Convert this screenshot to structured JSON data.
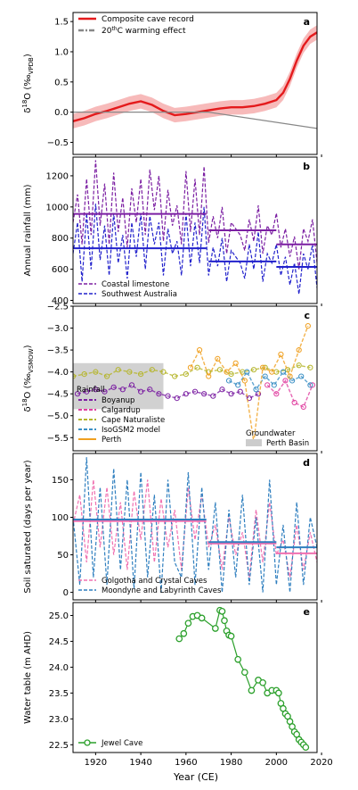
{
  "figure": {
    "xlabel": "Year (CE)",
    "xticks": [
      1920,
      1940,
      1960,
      1980,
      2000,
      2020
    ]
  },
  "chart_data": [
    {
      "panel": "a",
      "type": "line",
      "ylabel": "δ18O (‰VPDB)",
      "ylabel_parts": {
        "delta": "δ",
        "sup": "18",
        "main": "O (‰",
        "sub": "VPDB",
        "end": ")"
      },
      "xlim": [
        1910,
        2018
      ],
      "ylim": [
        -0.7,
        1.65
      ],
      "yticks": [
        -0.5,
        0.0,
        0.5,
        1.0,
        1.5
      ],
      "ytick_labels": [
        "−0.5",
        "0.0",
        "0.5",
        "1.0",
        "1.5"
      ],
      "legend_position": "top-left",
      "legend": [
        {
          "label": "Composite cave record",
          "color": "#e41a1c",
          "style": "solid"
        },
        {
          "label": "20thC warming effect",
          "label_main": "20",
          "label_sup": "th",
          "label_rest": "C warming effect",
          "color": "#888888",
          "style": "dashdot"
        }
      ],
      "series": [
        {
          "name": "Composite cave record",
          "color": "#e41a1c",
          "x": [
            1910,
            1915,
            1920,
            1925,
            1930,
            1935,
            1940,
            1945,
            1950,
            1955,
            1960,
            1965,
            1970,
            1975,
            1980,
            1985,
            1990,
            1995,
            2000,
            2003,
            2006,
            2009,
            2012,
            2015,
            2018
          ],
          "y": [
            -0.15,
            -0.1,
            -0.03,
            0.02,
            0.08,
            0.14,
            0.18,
            0.12,
            0.02,
            -0.05,
            -0.03,
            0.0,
            0.03,
            0.06,
            0.08,
            0.08,
            0.1,
            0.14,
            0.2,
            0.32,
            0.55,
            0.85,
            1.1,
            1.25,
            1.32
          ],
          "band_half_width": 0.12
        },
        {
          "name": "20thC warming effect",
          "color": "#888888",
          "x": [
            1910,
            1970,
            2018
          ],
          "y": [
            0.0,
            0.0,
            -0.27
          ]
        }
      ]
    },
    {
      "panel": "b",
      "type": "line",
      "ylabel": "Annual rainfall (mm)",
      "xlim": [
        1910,
        2018
      ],
      "ylim": [
        380,
        1320
      ],
      "yticks": [
        400,
        600,
        800,
        1000,
        1200
      ],
      "ytick_labels": [
        "400",
        "600",
        "800",
        "1000",
        "1200"
      ],
      "legend_position": "bottom-left",
      "series": [
        {
          "name": "Coastal limestone",
          "color": "#7b1fa2",
          "style": "dashed",
          "x": [
            1910,
            1912,
            1914,
            1916,
            1918,
            1920,
            1922,
            1924,
            1926,
            1928,
            1930,
            1932,
            1934,
            1936,
            1938,
            1940,
            1942,
            1944,
            1946,
            1948,
            1950,
            1952,
            1954,
            1956,
            1958,
            1960,
            1962,
            1964,
            1966,
            1968,
            1970,
            1972,
            1974,
            1976,
            1978,
            1980,
            1982,
            1984,
            1986,
            1988,
            1990,
            1992,
            1994,
            1996,
            1998,
            2000,
            2002,
            2004,
            2006,
            2008,
            2010,
            2012,
            2014,
            2016,
            2018
          ],
          "y": [
            900,
            1080,
            760,
            1180,
            820,
            1300,
            880,
            1150,
            760,
            1220,
            840,
            1060,
            740,
            1120,
            900,
            1180,
            820,
            1240,
            980,
            1200,
            780,
            1110,
            880,
            1010,
            760,
            1230,
            840,
            1180,
            820,
            1260,
            770,
            940,
            800,
            1000,
            700,
            900,
            860,
            820,
            720,
            920,
            780,
            1010,
            700,
            880,
            820,
            960,
            740,
            860,
            680,
            810,
            600,
            860,
            780,
            920,
            640
          ]
        },
        {
          "name": "Southwest Australia",
          "color": "#2222cc",
          "style": "dashed",
          "x": [
            1910,
            1912,
            1914,
            1916,
            1918,
            1920,
            1922,
            1924,
            1926,
            1928,
            1930,
            1932,
            1934,
            1936,
            1938,
            1940,
            1942,
            1944,
            1946,
            1948,
            1950,
            1952,
            1954,
            1956,
            1958,
            1960,
            1962,
            1964,
            1966,
            1968,
            1970,
            1972,
            1974,
            1976,
            1978,
            1980,
            1982,
            1984,
            1986,
            1988,
            1990,
            1992,
            1994,
            1996,
            1998,
            2000,
            2002,
            2004,
            2006,
            2008,
            2010,
            2012,
            2014,
            2016,
            2018
          ],
          "y": [
            700,
            900,
            520,
            960,
            600,
            1020,
            660,
            880,
            560,
            960,
            640,
            820,
            540,
            900,
            680,
            960,
            600,
            940,
            760,
            900,
            560,
            860,
            700,
            780,
            560,
            960,
            620,
            900,
            640,
            1000,
            560,
            740,
            620,
            800,
            520,
            720,
            680,
            640,
            540,
            760,
            600,
            840,
            520,
            700,
            640,
            760,
            560,
            680,
            500,
            640,
            440,
            700,
            600,
            760,
            480
          ]
        }
      ],
      "means": [
        {
          "series": "Coastal limestone",
          "segments": [
            [
              1910,
              1969,
              955
            ],
            [
              1970,
              2000,
              850
            ],
            [
              2000,
              2018,
              760
            ]
          ]
        },
        {
          "series": "Southwest Australia",
          "segments": [
            [
              1910,
              1969,
              735
            ],
            [
              1970,
              2000,
              650
            ],
            [
              2000,
              2018,
              615
            ]
          ]
        }
      ]
    },
    {
      "panel": "c",
      "type": "scatter",
      "ylabel": "δ18O (‰VSMOW)",
      "ylabel_parts": {
        "delta": "δ",
        "sup": "18",
        "main": "O (‰",
        "sub": "VSMOW",
        "end": ")"
      },
      "xlim": [
        1910,
        2018
      ],
      "ylim": [
        -5.8,
        -2.5
      ],
      "yticks": [
        -5.5,
        -5.0,
        -4.5,
        -4.0,
        -3.5,
        -3.0,
        -2.5
      ],
      "ytick_labels": [
        "−5.5",
        "−5.0",
        "−4.5",
        "−4.0",
        "−3.5",
        "−3.0",
        "−2.5"
      ],
      "legend_position": "bottom-left",
      "legend_title": "Rainfall",
      "legend_right_title": "Groundwater",
      "legend": [
        {
          "label": "Boyanup",
          "color": "#7b1fa2"
        },
        {
          "label": "Calgardup",
          "color": "#e040a0"
        },
        {
          "label": "Cape Naturaliste",
          "color": "#b5b52a"
        },
        {
          "label": "IsoGSM2 model",
          "color": "#3a8fc4"
        },
        {
          "label": "Perth",
          "color": "#f0a020"
        }
      ],
      "groundwater_band": {
        "label": "Perth Basin",
        "x": [
          1910,
          1950
        ],
        "y": [
          -4.85,
          -3.8
        ],
        "color": "#cccccc"
      },
      "series": [
        {
          "name": "Boyanup",
          "color": "#7b1fa2",
          "x": [
            1912,
            1916,
            1920,
            1924,
            1928,
            1932,
            1936,
            1940,
            1944,
            1948,
            1952,
            1956,
            1960,
            1964,
            1968,
            1972,
            1976,
            1980,
            1984,
            1988,
            1992
          ],
          "y": [
            -4.5,
            -4.45,
            -4.4,
            -4.45,
            -4.35,
            -4.4,
            -4.3,
            -4.45,
            -4.4,
            -4.5,
            -4.55,
            -4.6,
            -4.5,
            -4.45,
            -4.5,
            -4.55,
            -4.4,
            -4.5,
            -4.45,
            -4.6,
            -4.5
          ]
        },
        {
          "name": "Calgardup",
          "color": "#e040a0",
          "x": [
            1996,
            2000,
            2004,
            2008,
            2012,
            2016
          ],
          "y": [
            -4.3,
            -4.5,
            -4.2,
            -4.7,
            -4.8,
            -4.3
          ]
        },
        {
          "name": "Cape Naturaliste",
          "color": "#b5b52a",
          "x": [
            1910,
            1915,
            1920,
            1925,
            1930,
            1935,
            1940,
            1945,
            1950,
            1955,
            1960,
            1965,
            1970,
            1975,
            1980,
            1985,
            1990,
            1995,
            2000,
            2005,
            2010,
            2015
          ],
          "y": [
            -4.1,
            -4.05,
            -4.0,
            -4.1,
            -3.95,
            -4.0,
            -4.05,
            -3.95,
            -4.0,
            -4.1,
            -4.05,
            -3.9,
            -4.0,
            -3.95,
            -4.05,
            -4.0,
            -3.95,
            -3.9,
            -4.0,
            -3.95,
            -3.85,
            -3.9
          ]
        },
        {
          "name": "IsoGSM2 model",
          "color": "#3a8fc4",
          "x": [
            1979,
            1983,
            1987,
            1991,
            1995,
            1999,
            2003,
            2007,
            2011,
            2015
          ],
          "y": [
            -4.2,
            -4.3,
            -4.0,
            -4.4,
            -4.1,
            -4.3,
            -4.0,
            -4.2,
            -4.1,
            -4.3
          ]
        },
        {
          "name": "Perth",
          "color": "#f0a020",
          "x": [
            1962,
            1966,
            1970,
            1974,
            1978,
            1982,
            1986,
            1990,
            1994,
            1998,
            2002,
            2006,
            2010,
            2014
          ],
          "y": [
            -3.9,
            -3.5,
            -4.1,
            -3.7,
            -4.0,
            -3.8,
            -4.2,
            -5.6,
            -3.9,
            -4.0,
            -3.6,
            -4.1,
            -3.5,
            -2.95
          ]
        }
      ]
    },
    {
      "panel": "d",
      "type": "line",
      "ylabel": "Soil saturated (days per year)",
      "xlim": [
        1910,
        2018
      ],
      "ylim": [
        -10,
        185
      ],
      "yticks": [
        0,
        50,
        100,
        150
      ],
      "ytick_labels": [
        "0",
        "50",
        "100",
        "150"
      ],
      "legend_position": "bottom-left",
      "series": [
        {
          "name": "Golgotha and Crystal Caves",
          "color": "#f070b0",
          "style": "dashed",
          "x": [
            1910,
            1913,
            1916,
            1919,
            1922,
            1925,
            1928,
            1931,
            1934,
            1937,
            1940,
            1943,
            1946,
            1949,
            1952,
            1955,
            1958,
            1961,
            1964,
            1967,
            1970,
            1973,
            1976,
            1979,
            1982,
            1985,
            1988,
            1991,
            1994,
            1997,
            2000,
            2003,
            2006,
            2009,
            2012,
            2015,
            2018
          ],
          "y": [
            90,
            130,
            40,
            150,
            60,
            140,
            50,
            120,
            30,
            135,
            70,
            150,
            40,
            125,
            60,
            110,
            30,
            140,
            70,
            130,
            60,
            90,
            30,
            100,
            50,
            80,
            20,
            110,
            40,
            120,
            50,
            70,
            20,
            90,
            30,
            80,
            40
          ]
        },
        {
          "name": "Moondyne and Labyrinth Caves",
          "color": "#2f7fbf",
          "style": "dashed",
          "x": [
            1910,
            1913,
            1916,
            1919,
            1922,
            1925,
            1928,
            1931,
            1934,
            1937,
            1940,
            1943,
            1946,
            1949,
            1952,
            1955,
            1958,
            1961,
            1964,
            1967,
            1970,
            1973,
            1976,
            1979,
            1982,
            1985,
            1988,
            1991,
            1994,
            1997,
            2000,
            2003,
            2006,
            2009,
            2012,
            2015,
            2018
          ],
          "y": [
            100,
            10,
            180,
            20,
            140,
            10,
            165,
            30,
            150,
            5,
            160,
            20,
            130,
            0,
            150,
            40,
            20,
            160,
            10,
            140,
            30,
            120,
            0,
            110,
            20,
            130,
            10,
            100,
            0,
            150,
            10,
            90,
            0,
            120,
            10,
            100,
            60
          ]
        }
      ],
      "means": [
        {
          "series": "Golgotha and Crystal Caves",
          "segments": [
            [
              1910,
              1969,
              95
            ],
            [
              1970,
              2000,
              65
            ],
            [
              2000,
              2018,
              52
            ]
          ]
        },
        {
          "series": "Moondyne and Labyrinth Caves",
          "segments": [
            [
              1910,
              1969,
              97
            ],
            [
              1970,
              2000,
              67
            ],
            [
              2000,
              2018,
              60
            ]
          ]
        }
      ]
    },
    {
      "panel": "e",
      "type": "line",
      "ylabel": "Water table (m AHD)",
      "xlim": [
        1910,
        2018
      ],
      "ylim": [
        22.35,
        25.25
      ],
      "yticks": [
        22.5,
        23.0,
        23.5,
        24.0,
        24.5,
        25.0
      ],
      "ytick_labels": [
        "22.5",
        "23.0",
        "23.5",
        "24.0",
        "24.5",
        "25.0"
      ],
      "legend_position": "bottom-left",
      "series": [
        {
          "name": "Jewel Cave",
          "color": "#2ca02c",
          "x": [
            1957,
            1959,
            1961,
            1963,
            1965,
            1967,
            1973,
            1975,
            1976,
            1977,
            1978,
            1979,
            1980,
            1983,
            1986,
            1989,
            1992,
            1994,
            1996,
            1998,
            2000,
            2001,
            2002,
            2003,
            2004,
            2005,
            2006,
            2007,
            2008,
            2009,
            2010,
            2011,
            2012,
            2013
          ],
          "y": [
            24.55,
            24.65,
            24.85,
            24.98,
            25.0,
            24.95,
            24.75,
            25.1,
            25.08,
            24.9,
            24.7,
            24.62,
            24.6,
            24.15,
            23.9,
            23.55,
            23.75,
            23.7,
            23.5,
            23.55,
            23.55,
            23.5,
            23.3,
            23.2,
            23.1,
            23.05,
            22.95,
            22.85,
            22.75,
            22.7,
            22.6,
            22.55,
            22.5,
            22.45
          ]
        }
      ]
    }
  ]
}
